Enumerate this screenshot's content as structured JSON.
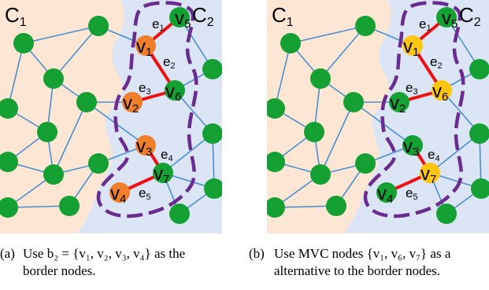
{
  "colors": {
    "c1_region": "#fde6d3",
    "c2_region": "#dbe5f5",
    "green_node": "#14a033",
    "orange_node": "#f07f2c",
    "yellow_node": "#ffc50f",
    "edge_blue": "#4a8fd0",
    "edge_red": "#ee1111",
    "boundary_purple": "#6a2c91"
  },
  "panels": [
    {
      "id": "a",
      "cluster_labels": {
        "c1": "C",
        "c1_sub": "1",
        "c2": "C",
        "c2_sub": "2"
      },
      "node_labels": [
        {
          "node": "v5",
          "letter": "v",
          "sub": "5"
        },
        {
          "node": "v1",
          "letter": "v",
          "sub": "1"
        },
        {
          "node": "v6",
          "letter": "v",
          "sub": "6"
        },
        {
          "node": "v2",
          "letter": "v",
          "sub": "2"
        },
        {
          "node": "v3",
          "letter": "v",
          "sub": "3"
        },
        {
          "node": "v7",
          "letter": "v",
          "sub": "7"
        },
        {
          "node": "v4",
          "letter": "v",
          "sub": "4"
        }
      ],
      "edge_labels": [
        {
          "letter": "e",
          "sub": "1"
        },
        {
          "letter": "e",
          "sub": "2"
        },
        {
          "letter": "e",
          "sub": "3"
        },
        {
          "letter": "e",
          "sub": "4"
        },
        {
          "letter": "e",
          "sub": "5"
        }
      ],
      "highlight": [
        "v1",
        "v2",
        "v3",
        "v4"
      ],
      "highlight_color": "orange_node",
      "caption_tag": "(a)",
      "caption_line1": "Use b₂ = {v₁, v₂, v₃, v₄} as the",
      "caption_line2": "border nodes."
    },
    {
      "id": "b",
      "cluster_labels": {
        "c1": "C",
        "c1_sub": "1",
        "c2": "C",
        "c2_sub": "2"
      },
      "node_labels": [
        {
          "node": "v5",
          "letter": "v",
          "sub": "5"
        },
        {
          "node": "v1",
          "letter": "v",
          "sub": "1"
        },
        {
          "node": "v6",
          "letter": "v",
          "sub": "6"
        },
        {
          "node": "v2",
          "letter": "v",
          "sub": "2"
        },
        {
          "node": "v3",
          "letter": "v",
          "sub": "3"
        },
        {
          "node": "v7",
          "letter": "v",
          "sub": "7"
        },
        {
          "node": "v4",
          "letter": "v",
          "sub": "4"
        }
      ],
      "edge_labels": [
        {
          "letter": "e",
          "sub": "1"
        },
        {
          "letter": "e",
          "sub": "2"
        },
        {
          "letter": "e",
          "sub": "3"
        },
        {
          "letter": "e",
          "sub": "4"
        },
        {
          "letter": "e",
          "sub": "5"
        }
      ],
      "highlight": [
        "v1",
        "v6",
        "v7"
      ],
      "highlight_color": "yellow_node",
      "caption_tag": "(b)",
      "caption_line1": "Use MVC nodes {v₁, v₆, v₇} as a",
      "caption_line2": "alternative to the border nodes."
    }
  ]
}
